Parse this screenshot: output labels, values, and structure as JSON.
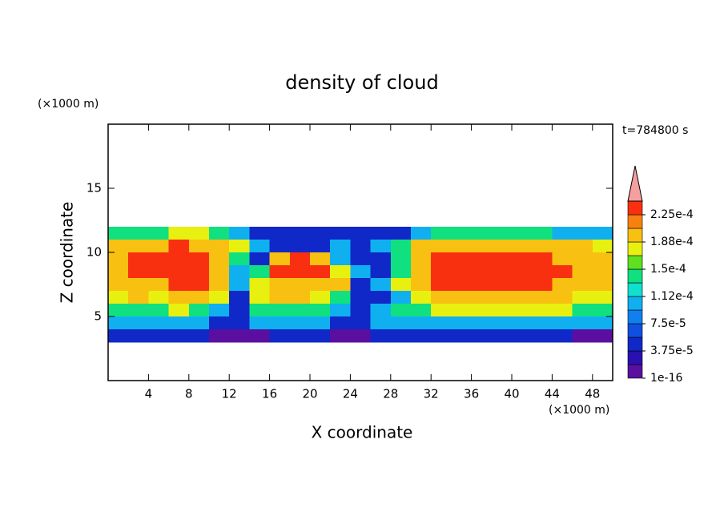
{
  "chart_data": {
    "type": "contour",
    "title": "density of cloud",
    "xlabel": "X coordinate",
    "ylabel": "Z coordinate",
    "xunit": "(×1000 m)",
    "yunit": "(×1000 m)",
    "annotation": "t=784800 s",
    "xlim": [
      0,
      50
    ],
    "ylim": [
      0,
      20
    ],
    "xticks": [
      4,
      8,
      12,
      16,
      20,
      24,
      28,
      32,
      36,
      40,
      44,
      48
    ],
    "yticks": [
      5,
      10,
      15
    ],
    "x": [
      1,
      3,
      5,
      7,
      9,
      11,
      13,
      15,
      17,
      19,
      21,
      23,
      25,
      27,
      29,
      31,
      33,
      35,
      37,
      39,
      41,
      43,
      45,
      47,
      49
    ],
    "y": [
      11.5,
      10.5,
      9.5,
      8.5,
      7.5,
      6.5,
      5.5,
      4.5,
      3.5
    ],
    "values": [
      [
        0.00014,
        0.00014,
        0.00014,
        0.00017,
        0.00017,
        0.00014,
        0.0001,
        5e-05,
        5e-05,
        5e-05,
        5e-05,
        5e-05,
        5e-05,
        5e-05,
        5e-05,
        0.0001,
        0.00014,
        0.00014,
        0.00014,
        0.00014,
        0.00014,
        0.00014,
        0.0001,
        0.0001,
        0.0001
      ],
      [
        0.0002,
        0.0002,
        0.0002,
        0.00023,
        0.0002,
        0.0002,
        0.00017,
        0.0001,
        5e-05,
        5e-05,
        5e-05,
        0.0001,
        5e-05,
        0.0001,
        0.00014,
        0.0002,
        0.0002,
        0.0002,
        0.0002,
        0.0002,
        0.0002,
        0.0002,
        0.0002,
        0.0002,
        0.00017
      ],
      [
        0.0002,
        0.00023,
        0.00023,
        0.00023,
        0.00023,
        0.0002,
        0.00014,
        5e-05,
        0.0002,
        0.00023,
        0.0002,
        0.0001,
        5e-05,
        5e-05,
        0.00014,
        0.0002,
        0.00023,
        0.00023,
        0.00023,
        0.00023,
        0.00023,
        0.00023,
        0.0002,
        0.0002,
        0.0002
      ],
      [
        0.0002,
        0.00023,
        0.00023,
        0.00023,
        0.00023,
        0.0002,
        0.0001,
        0.00014,
        0.00023,
        0.00023,
        0.00023,
        0.00017,
        0.0001,
        5e-05,
        0.00014,
        0.0002,
        0.00023,
        0.00023,
        0.00023,
        0.00023,
        0.00023,
        0.00023,
        0.00023,
        0.0002,
        0.0002
      ],
      [
        0.0002,
        0.0002,
        0.0002,
        0.00023,
        0.00023,
        0.0002,
        0.0001,
        0.00017,
        0.0002,
        0.0002,
        0.0002,
        0.0002,
        5e-05,
        0.0001,
        0.00017,
        0.0002,
        0.00023,
        0.00023,
        0.00023,
        0.00023,
        0.00023,
        0.00023,
        0.0002,
        0.0002,
        0.0002
      ],
      [
        0.00017,
        0.0002,
        0.00017,
        0.0002,
        0.0002,
        0.00017,
        5e-05,
        0.00017,
        0.0002,
        0.0002,
        0.00017,
        0.00014,
        5e-05,
        5e-05,
        0.0001,
        0.00017,
        0.0002,
        0.0002,
        0.0002,
        0.0002,
        0.0002,
        0.0002,
        0.0002,
        0.00017,
        0.00017
      ],
      [
        0.00014,
        0.00014,
        0.00014,
        0.00017,
        0.00014,
        0.0001,
        5e-05,
        0.00014,
        0.00014,
        0.00014,
        0.00014,
        0.0001,
        5e-05,
        0.0001,
        0.00014,
        0.00014,
        0.00017,
        0.00017,
        0.00017,
        0.00017,
        0.00017,
        0.00017,
        0.00017,
        0.00014,
        0.00014
      ],
      [
        0.0001,
        0.0001,
        0.0001,
        0.0001,
        0.0001,
        5e-05,
        5e-05,
        0.0001,
        0.0001,
        0.0001,
        0.0001,
        5e-05,
        5e-05,
        0.0001,
        0.0001,
        0.0001,
        0.0001,
        0.0001,
        0.0001,
        0.0001,
        0.0001,
        0.0001,
        0.0001,
        0.0001,
        0.0001
      ],
      [
        5e-05,
        5e-05,
        5e-05,
        5e-05,
        5e-05,
        1e-05,
        1e-05,
        1e-05,
        5e-05,
        5e-05,
        5e-05,
        1e-05,
        1e-05,
        5e-05,
        5e-05,
        5e-05,
        5e-05,
        5e-05,
        5e-05,
        5e-05,
        5e-05,
        5e-05,
        5e-05,
        1e-05,
        1e-05
      ]
    ],
    "colorbar": {
      "levels": [
        1e-16,
        1.875e-05,
        3.75e-05,
        5.625e-05,
        7.5e-05,
        9.375e-05,
        0.0001125,
        0.00013125,
        0.00015,
        0.00016875,
        0.0001875,
        0.00020625,
        0.000225,
        0.00024375
      ],
      "colors": [
        "#5a0fa0",
        "#2a10b0",
        "#1028c8",
        "#1050e0",
        "#1080f0",
        "#10b0f0",
        "#10e0d0",
        "#10e080",
        "#60e020",
        "#e8f010",
        "#f8c010",
        "#f88010",
        "#f83010"
      ],
      "extend_color": "#f4a0a0",
      "ticks": [
        {
          "value": 1e-16,
          "label": "1e-16"
        },
        {
          "value": 3.75e-05,
          "label": "3.75e-5"
        },
        {
          "value": 7.5e-05,
          "label": "7.5e-5"
        },
        {
          "value": 0.0001125,
          "label": "1.12e-4"
        },
        {
          "value": 0.00015,
          "label": "1.5e-4"
        },
        {
          "value": 0.0001875,
          "label": "1.88e-4"
        },
        {
          "value": 0.000225,
          "label": "2.25e-4"
        }
      ]
    }
  }
}
